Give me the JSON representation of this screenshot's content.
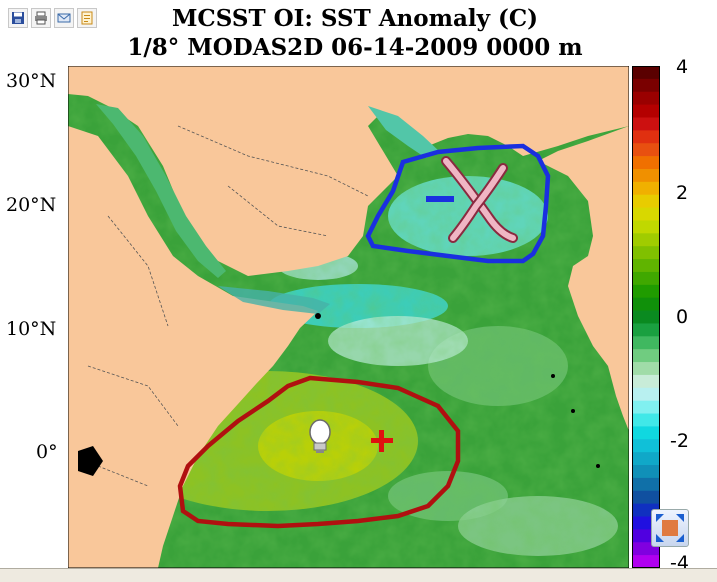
{
  "toolbar": {
    "buttons": [
      {
        "icon": "save-icon",
        "color": "#2a4d9c"
      },
      {
        "icon": "print-icon",
        "color": "#555555"
      },
      {
        "icon": "email-icon",
        "color": "#3a6aa8"
      },
      {
        "icon": "print-preview-icon",
        "color": "#c88a18"
      }
    ]
  },
  "title": {
    "line1": "MCSST OI:  SST Anomaly (C)",
    "line2": "1/8° MODAS2D 06-14-2009 0000 m"
  },
  "map": {
    "lat_labels": [
      "30°N",
      "20°N",
      "10°N",
      "0°"
    ],
    "land_color": "#f9c79a",
    "annotations": {
      "negative_region_color": "#1a2fe0",
      "negative_symbol": "−",
      "positive_region_color": "#b01010",
      "positive_symbol": "+",
      "tip_icon": "lightbulb-icon",
      "close_icon": "x-icon"
    }
  },
  "colorbar": {
    "range": [
      -4,
      4
    ],
    "tick_labels": [
      "4",
      "2",
      "0",
      "-2",
      "-4"
    ],
    "colors": [
      "#5a0000",
      "#7a0000",
      "#9a0000",
      "#b40000",
      "#cc1010",
      "#e03010",
      "#e85010",
      "#f07000",
      "#f09000",
      "#f0b000",
      "#e8cc00",
      "#d8d800",
      "#c0d800",
      "#a0cc00",
      "#80c000",
      "#60b400",
      "#40a800",
      "#209c00",
      "#10900a",
      "#0a8a20",
      "#1aa040",
      "#40b860",
      "#70cc80",
      "#a0dca8",
      "#c8ecd8",
      "#b8f0f0",
      "#80f0f0",
      "#40e8e8",
      "#10d8e0",
      "#10c0d8",
      "#10a8c8",
      "#1090b8",
      "#1070a8",
      "#1050a0",
      "#1030c0",
      "#2010e0",
      "#5000e0",
      "#8000e0",
      "#b000f0"
    ]
  },
  "corner_button": {
    "icon": "zoom-expand-icon"
  }
}
